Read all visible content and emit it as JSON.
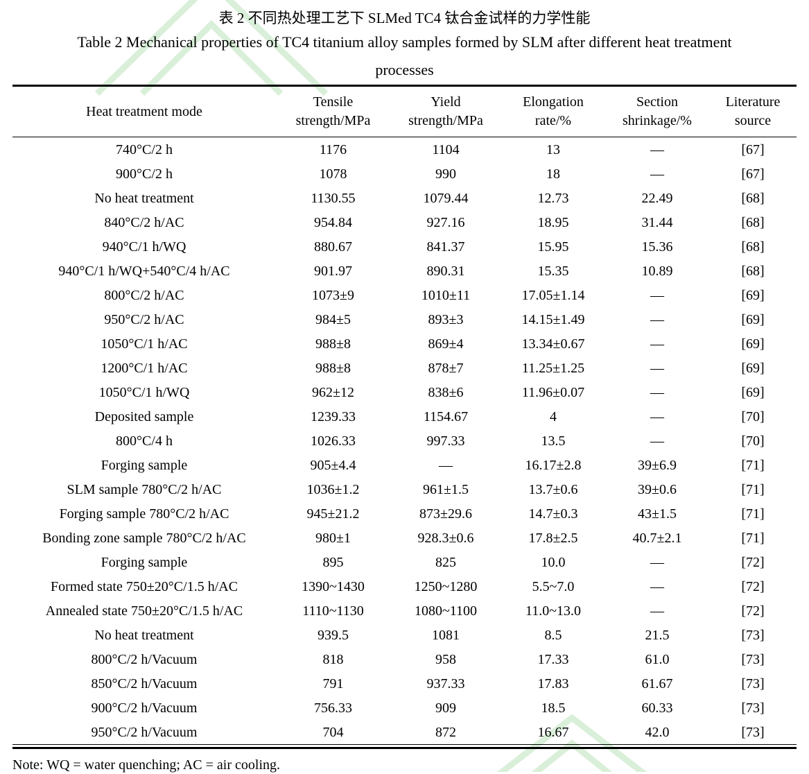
{
  "colors": {
    "watermark": "#d9efd9",
    "text": "#000000",
    "background": "#ffffff"
  },
  "titles": {
    "zh": "表 2 不同热处理工艺下 SLMed TC4 钛合金试样的力学性能",
    "en_line1": "Table 2 Mechanical properties of TC4 titanium alloy samples formed by SLM after different heat treatment",
    "en_line2": "processes"
  },
  "table": {
    "headers": [
      {
        "line1": "Heat treatment mode",
        "line2": ""
      },
      {
        "line1": "Tensile",
        "line2": "strength/MPa"
      },
      {
        "line1": "Yield",
        "line2": "strength/MPa"
      },
      {
        "line1": "Elongation",
        "line2": "rate/%"
      },
      {
        "line1": "Section",
        "line2": "shrinkage/%"
      },
      {
        "line1": "Literature",
        "line2": "source"
      }
    ],
    "rows": [
      [
        "740°C/2 h",
        "1176",
        "1104",
        "13",
        "—",
        "[67]"
      ],
      [
        "900°C/2 h",
        "1078",
        "990",
        "18",
        "—",
        "[67]"
      ],
      [
        "No heat treatment",
        "1130.55",
        "1079.44",
        "12.73",
        "22.49",
        "[68]"
      ],
      [
        "840°C/2 h/AC",
        "954.84",
        "927.16",
        "18.95",
        "31.44",
        "[68]"
      ],
      [
        "940°C/1 h/WQ",
        "880.67",
        "841.37",
        "15.95",
        "15.36",
        "[68]"
      ],
      [
        "940°C/1 h/WQ+540°C/4 h/AC",
        "901.97",
        "890.31",
        "15.35",
        "10.89",
        "[68]"
      ],
      [
        "800°C/2 h/AC",
        "1073±9",
        "1010±11",
        "17.05±1.14",
        "—",
        "[69]"
      ],
      [
        "950°C/2 h/AC",
        "984±5",
        "893±3",
        "14.15±1.49",
        "—",
        "[69]"
      ],
      [
        "1050°C/1 h/AC",
        "988±8",
        "869±4",
        "13.34±0.67",
        "—",
        "[69]"
      ],
      [
        "1200°C/1 h/AC",
        "988±8",
        "878±7",
        "11.25±1.25",
        "—",
        "[69]"
      ],
      [
        "1050°C/1 h/WQ",
        "962±12",
        "838±6",
        "11.96±0.07",
        "—",
        "[69]"
      ],
      [
        "Deposited sample",
        "1239.33",
        "1154.67",
        "4",
        "—",
        "[70]"
      ],
      [
        "800°C/4 h",
        "1026.33",
        "997.33",
        "13.5",
        "—",
        "[70]"
      ],
      [
        "Forging sample",
        "905±4.4",
        "—",
        "16.17±2.8",
        "39±6.9",
        "[71]"
      ],
      [
        "SLM sample 780°C/2 h/AC",
        "1036±1.2",
        "961±1.5",
        "13.7±0.6",
        "39±0.6",
        "[71]"
      ],
      [
        "Forging sample 780°C/2 h/AC",
        "945±21.2",
        "873±29.6",
        "14.7±0.3",
        "43±1.5",
        "[71]"
      ],
      [
        "Bonding zone sample 780°C/2 h/AC",
        "980±1",
        "928.3±0.6",
        "17.8±2.5",
        "40.7±2.1",
        "[71]"
      ],
      [
        "Forging sample",
        "895",
        "825",
        "10.0",
        "—",
        "[72]"
      ],
      [
        "Formed state 750±20°C/1.5 h/AC",
        "1390~1430",
        "1250~1280",
        "5.5~7.0",
        "—",
        "[72]"
      ],
      [
        "Annealed state 750±20°C/1.5 h/AC",
        "1110~1130",
        "1080~1100",
        "11.0~13.0",
        "—",
        "[72]"
      ],
      [
        "No heat treatment",
        "939.5",
        "1081",
        "8.5",
        "21.5",
        "[73]"
      ],
      [
        "800°C/2 h/Vacuum",
        "818",
        "958",
        "17.33",
        "61.0",
        "[73]"
      ],
      [
        "850°C/2 h/Vacuum",
        "791",
        "937.33",
        "17.83",
        "61.67",
        "[73]"
      ],
      [
        "900°C/2 h/Vacuum",
        "756.33",
        "909",
        "18.5",
        "60.33",
        "[73]"
      ],
      [
        "950°C/2 h/Vacuum",
        "704",
        "872",
        "16.67",
        "42.0",
        "[73]"
      ]
    ]
  },
  "note": "Note: WQ = water quenching; AC = air cooling."
}
